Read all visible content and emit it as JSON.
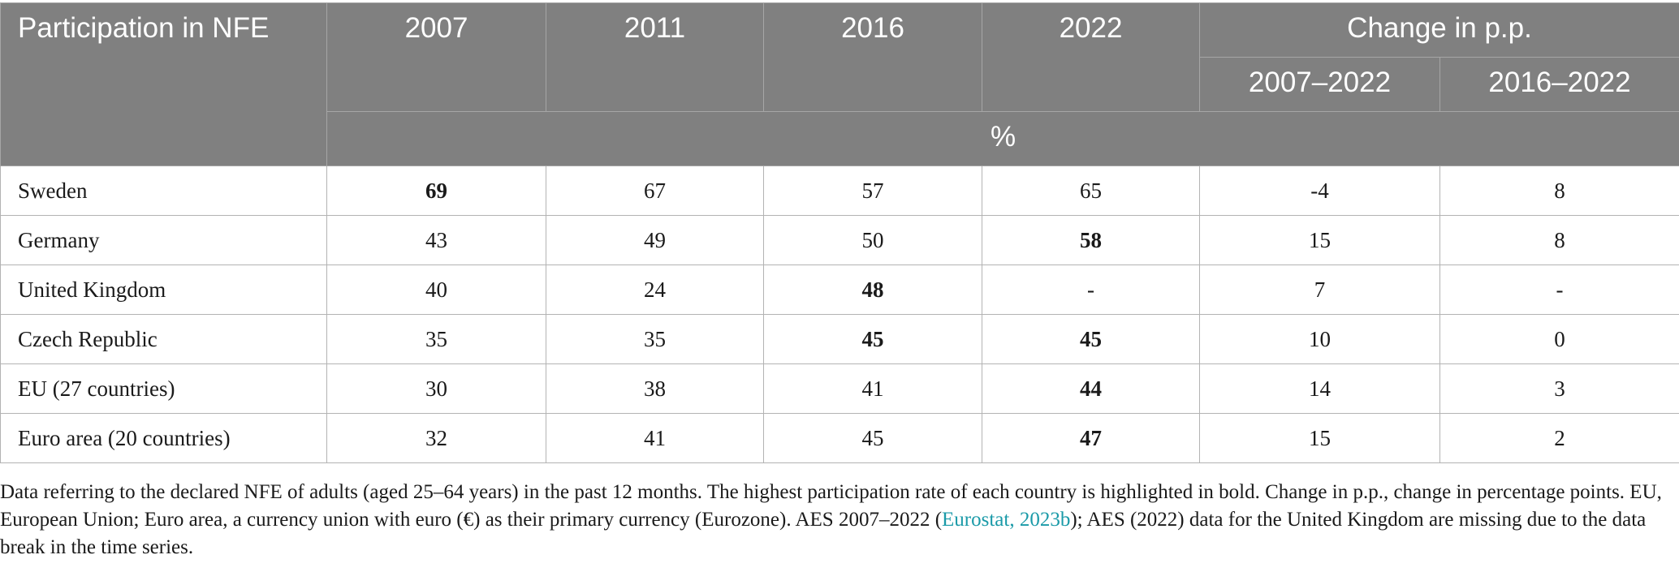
{
  "table": {
    "header": {
      "row_label": "Participation in NFE",
      "years": [
        "2007",
        "2011",
        "2016",
        "2022"
      ],
      "change_label": "Change in p.p.",
      "change_periods": [
        "2007–2022",
        "2016–2022"
      ],
      "unit": "%"
    },
    "rows": [
      {
        "country": "Sweden",
        "values": [
          "69",
          "67",
          "57",
          "65",
          "-4",
          "8"
        ],
        "bold": [
          true,
          false,
          false,
          false,
          false,
          false
        ]
      },
      {
        "country": "Germany",
        "values": [
          "43",
          "49",
          "50",
          "58",
          "15",
          "8"
        ],
        "bold": [
          false,
          false,
          false,
          true,
          false,
          false
        ]
      },
      {
        "country": "United Kingdom",
        "values": [
          "40",
          "24",
          "48",
          "-",
          "7",
          "-"
        ],
        "bold": [
          false,
          false,
          true,
          false,
          false,
          false
        ]
      },
      {
        "country": "Czech Republic",
        "values": [
          "35",
          "35",
          "45",
          "45",
          "10",
          "0"
        ],
        "bold": [
          false,
          false,
          true,
          true,
          false,
          false
        ]
      },
      {
        "country": "EU (27 countries)",
        "values": [
          "30",
          "38",
          "41",
          "44",
          "14",
          "3"
        ],
        "bold": [
          false,
          false,
          false,
          true,
          false,
          false
        ]
      },
      {
        "country": "Euro area (20 countries)",
        "values": [
          "32",
          "41",
          "45",
          "47",
          "15",
          "2"
        ],
        "bold": [
          false,
          false,
          false,
          true,
          false,
          false
        ]
      }
    ]
  },
  "footnote": {
    "before_link": "Data referring to the declared NFE of adults (aged 25–64 years) in the past 12 months. The highest participation rate of each country is highlighted in bold. Change in p.p., change in percentage points. EU, European Union; Euro area, a currency union with euro (€) as their primary currency (Eurozone). AES 2007–2022 (",
    "link_text": "Eurostat, 2023b",
    "after_link": "); AES (2022) data for the United Kingdom are missing due to the data break in the time series.",
    "link_color": "#1a9aa8"
  },
  "colors": {
    "header_bg": "#808080",
    "header_text": "#ffffff",
    "border": "#b3b3b3"
  }
}
